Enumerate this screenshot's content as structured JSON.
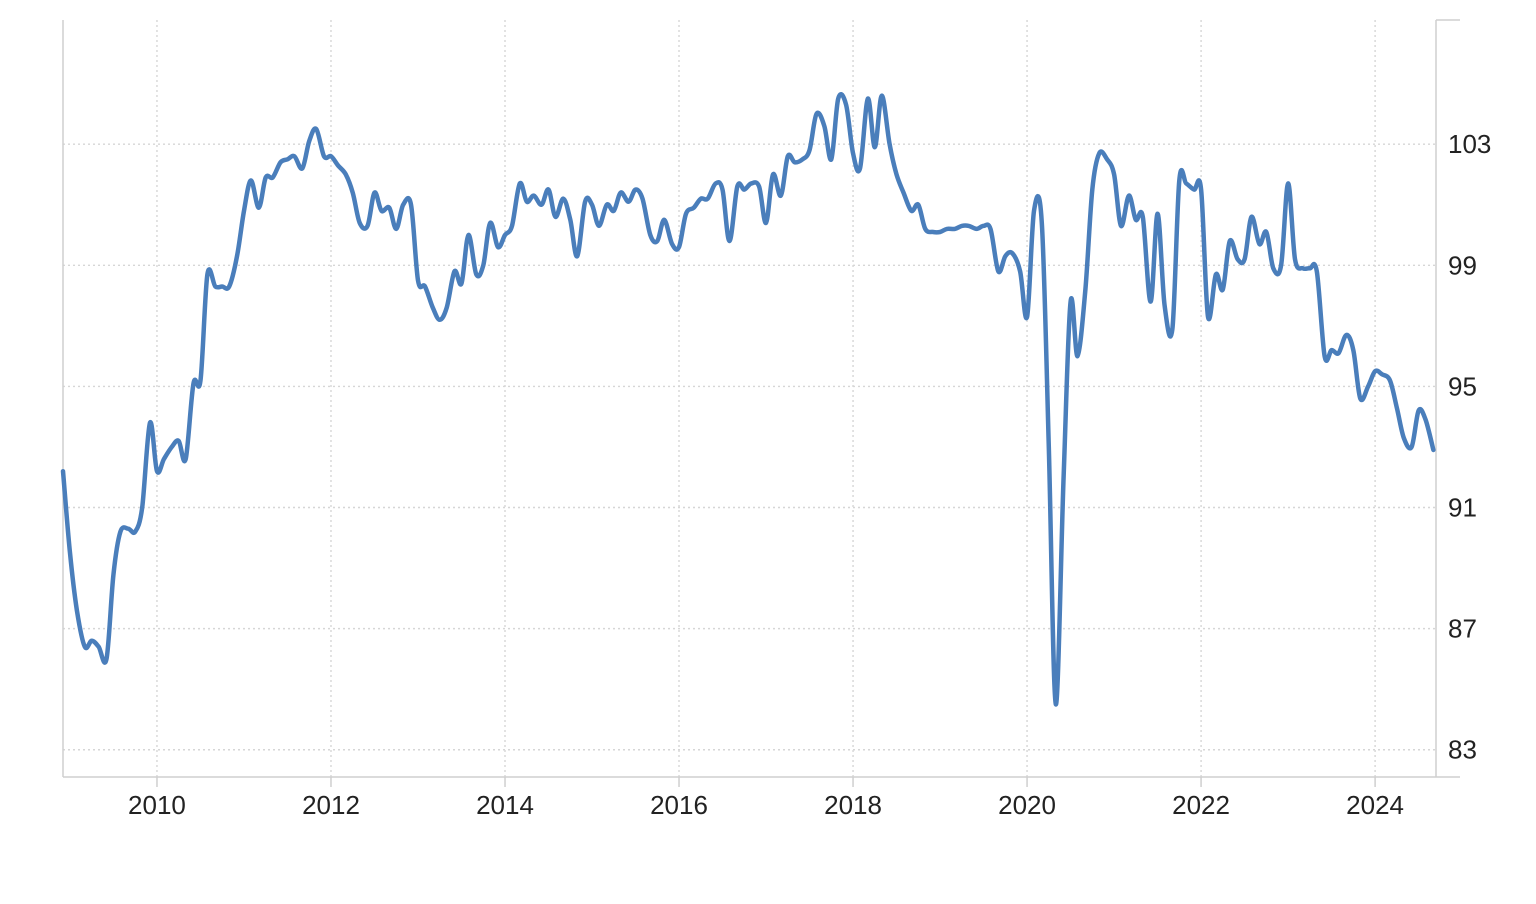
{
  "chart_data": {
    "type": "line",
    "title": "",
    "xlabel": "",
    "ylabel": "",
    "x_ticks": [
      2010,
      2012,
      2014,
      2016,
      2018,
      2020,
      2022,
      2024
    ],
    "x_tick_labels": [
      "2010",
      "2012",
      "2014",
      "2016",
      "2018",
      "2020",
      "2022",
      "2024"
    ],
    "y_ticks": [
      83,
      87,
      91,
      95,
      99,
      103
    ],
    "y_tick_labels": [
      "83",
      "87",
      "91",
      "95",
      "99",
      "103"
    ],
    "xlim": [
      2008.92,
      2024.7
    ],
    "ylim": [
      82.1,
      107.1
    ],
    "y_axis_side": "right",
    "grid": true,
    "legend": "none",
    "series": [
      {
        "color": "#4a7ebb",
        "points": [
          [
            2008.92,
            92.2
          ],
          [
            2009.0,
            89.5
          ],
          [
            2009.08,
            87.6
          ],
          [
            2009.17,
            86.4
          ],
          [
            2009.25,
            86.6
          ],
          [
            2009.33,
            86.4
          ],
          [
            2009.42,
            86.0
          ],
          [
            2009.5,
            88.8
          ],
          [
            2009.58,
            90.2
          ],
          [
            2009.67,
            90.3
          ],
          [
            2009.75,
            90.2
          ],
          [
            2009.83,
            91.0
          ],
          [
            2009.92,
            93.8
          ],
          [
            2010.0,
            92.2
          ],
          [
            2010.08,
            92.6
          ],
          [
            2010.17,
            93.0
          ],
          [
            2010.25,
            93.2
          ],
          [
            2010.33,
            92.6
          ],
          [
            2010.42,
            95.1
          ],
          [
            2010.5,
            95.2
          ],
          [
            2010.58,
            98.7
          ],
          [
            2010.67,
            98.3
          ],
          [
            2010.75,
            98.3
          ],
          [
            2010.83,
            98.3
          ],
          [
            2010.92,
            99.3
          ],
          [
            2011.0,
            100.8
          ],
          [
            2011.08,
            101.8
          ],
          [
            2011.17,
            100.9
          ],
          [
            2011.25,
            101.9
          ],
          [
            2011.33,
            101.9
          ],
          [
            2011.42,
            102.4
          ],
          [
            2011.5,
            102.5
          ],
          [
            2011.58,
            102.6
          ],
          [
            2011.67,
            102.2
          ],
          [
            2011.75,
            103.1
          ],
          [
            2011.83,
            103.5
          ],
          [
            2011.92,
            102.6
          ],
          [
            2012.0,
            102.6
          ],
          [
            2012.08,
            102.3
          ],
          [
            2012.17,
            102.0
          ],
          [
            2012.25,
            101.4
          ],
          [
            2012.33,
            100.4
          ],
          [
            2012.42,
            100.3
          ],
          [
            2012.5,
            101.4
          ],
          [
            2012.58,
            100.8
          ],
          [
            2012.67,
            100.9
          ],
          [
            2012.75,
            100.2
          ],
          [
            2012.83,
            101.0
          ],
          [
            2012.92,
            101.0
          ],
          [
            2013.0,
            98.5
          ],
          [
            2013.08,
            98.3
          ],
          [
            2013.17,
            97.6
          ],
          [
            2013.25,
            97.2
          ],
          [
            2013.33,
            97.6
          ],
          [
            2013.42,
            98.8
          ],
          [
            2013.5,
            98.4
          ],
          [
            2013.58,
            100.0
          ],
          [
            2013.67,
            98.7
          ],
          [
            2013.75,
            99.0
          ],
          [
            2013.83,
            100.4
          ],
          [
            2013.92,
            99.6
          ],
          [
            2014.0,
            100.0
          ],
          [
            2014.08,
            100.3
          ],
          [
            2014.17,
            101.7
          ],
          [
            2014.25,
            101.1
          ],
          [
            2014.33,
            101.3
          ],
          [
            2014.42,
            101.0
          ],
          [
            2014.5,
            101.5
          ],
          [
            2014.58,
            100.6
          ],
          [
            2014.67,
            101.2
          ],
          [
            2014.75,
            100.5
          ],
          [
            2014.83,
            99.3
          ],
          [
            2014.92,
            101.1
          ],
          [
            2015.0,
            101.0
          ],
          [
            2015.08,
            100.3
          ],
          [
            2015.17,
            101.0
          ],
          [
            2015.25,
            100.8
          ],
          [
            2015.33,
            101.4
          ],
          [
            2015.42,
            101.1
          ],
          [
            2015.5,
            101.5
          ],
          [
            2015.58,
            101.2
          ],
          [
            2015.67,
            100.0
          ],
          [
            2015.75,
            99.8
          ],
          [
            2015.83,
            100.5
          ],
          [
            2015.92,
            99.7
          ],
          [
            2016.0,
            99.6
          ],
          [
            2016.08,
            100.7
          ],
          [
            2016.17,
            100.9
          ],
          [
            2016.25,
            101.2
          ],
          [
            2016.33,
            101.2
          ],
          [
            2016.42,
            101.7
          ],
          [
            2016.5,
            101.5
          ],
          [
            2016.58,
            99.8
          ],
          [
            2016.67,
            101.6
          ],
          [
            2016.75,
            101.5
          ],
          [
            2016.83,
            101.7
          ],
          [
            2016.92,
            101.6
          ],
          [
            2017.0,
            100.4
          ],
          [
            2017.08,
            102.0
          ],
          [
            2017.17,
            101.3
          ],
          [
            2017.25,
            102.6
          ],
          [
            2017.33,
            102.4
          ],
          [
            2017.42,
            102.5
          ],
          [
            2017.5,
            102.8
          ],
          [
            2017.58,
            104.0
          ],
          [
            2017.67,
            103.6
          ],
          [
            2017.75,
            102.5
          ],
          [
            2017.83,
            104.5
          ],
          [
            2017.92,
            104.3
          ],
          [
            2018.0,
            102.7
          ],
          [
            2018.08,
            102.2
          ],
          [
            2018.17,
            104.5
          ],
          [
            2018.25,
            102.9
          ],
          [
            2018.33,
            104.6
          ],
          [
            2018.42,
            103.0
          ],
          [
            2018.5,
            102.0
          ],
          [
            2018.58,
            101.4
          ],
          [
            2018.67,
            100.8
          ],
          [
            2018.75,
            101.0
          ],
          [
            2018.83,
            100.2
          ],
          [
            2018.92,
            100.1
          ],
          [
            2019.0,
            100.1
          ],
          [
            2019.08,
            100.2
          ],
          [
            2019.17,
            100.2
          ],
          [
            2019.25,
            100.3
          ],
          [
            2019.33,
            100.3
          ],
          [
            2019.42,
            100.2
          ],
          [
            2019.5,
            100.3
          ],
          [
            2019.58,
            100.2
          ],
          [
            2019.67,
            98.8
          ],
          [
            2019.75,
            99.3
          ],
          [
            2019.83,
            99.4
          ],
          [
            2019.92,
            98.8
          ],
          [
            2020.0,
            97.3
          ],
          [
            2020.08,
            100.8
          ],
          [
            2020.17,
            100.4
          ],
          [
            2020.25,
            93.0
          ],
          [
            2020.33,
            84.5
          ],
          [
            2020.42,
            92.0
          ],
          [
            2020.5,
            97.8
          ],
          [
            2020.58,
            96.0
          ],
          [
            2020.67,
            98.2
          ],
          [
            2020.75,
            101.5
          ],
          [
            2020.83,
            102.7
          ],
          [
            2020.92,
            102.5
          ],
          [
            2021.0,
            102.0
          ],
          [
            2021.08,
            100.3
          ],
          [
            2021.17,
            101.3
          ],
          [
            2021.25,
            100.5
          ],
          [
            2021.33,
            100.6
          ],
          [
            2021.42,
            97.8
          ],
          [
            2021.5,
            100.7
          ],
          [
            2021.58,
            97.7
          ],
          [
            2021.67,
            96.9
          ],
          [
            2021.75,
            101.8
          ],
          [
            2021.83,
            101.7
          ],
          [
            2021.92,
            101.5
          ],
          [
            2022.0,
            101.5
          ],
          [
            2022.08,
            97.3
          ],
          [
            2022.17,
            98.7
          ],
          [
            2022.25,
            98.2
          ],
          [
            2022.33,
            99.8
          ],
          [
            2022.42,
            99.2
          ],
          [
            2022.5,
            99.2
          ],
          [
            2022.58,
            100.6
          ],
          [
            2022.67,
            99.7
          ],
          [
            2022.75,
            100.1
          ],
          [
            2022.83,
            98.9
          ],
          [
            2022.92,
            99.0
          ],
          [
            2023.0,
            101.7
          ],
          [
            2023.08,
            99.2
          ],
          [
            2023.17,
            98.9
          ],
          [
            2023.25,
            98.9
          ],
          [
            2023.33,
            98.8
          ],
          [
            2023.42,
            96.0
          ],
          [
            2023.5,
            96.2
          ],
          [
            2023.58,
            96.1
          ],
          [
            2023.67,
            96.7
          ],
          [
            2023.75,
            96.2
          ],
          [
            2023.83,
            94.6
          ],
          [
            2023.92,
            95.0
          ],
          [
            2024.0,
            95.5
          ],
          [
            2024.08,
            95.4
          ],
          [
            2024.17,
            95.2
          ],
          [
            2024.25,
            94.3
          ],
          [
            2024.33,
            93.3
          ],
          [
            2024.42,
            93.0
          ],
          [
            2024.5,
            94.2
          ],
          [
            2024.58,
            93.9
          ],
          [
            2024.67,
            92.9
          ]
        ]
      }
    ]
  }
}
